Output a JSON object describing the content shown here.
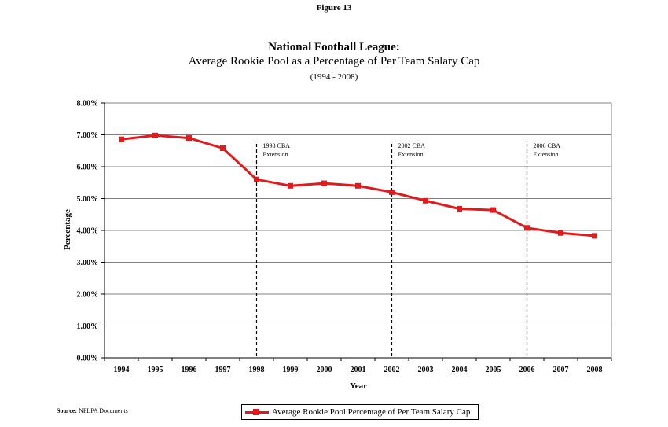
{
  "figure_label": "Figure 13",
  "source": {
    "label": "Source:",
    "text": "NFLPA Documents"
  },
  "colors": {
    "series": "#e31a1c",
    "grid": "#808080",
    "axis": "#000000"
  },
  "chart_data": {
    "type": "line",
    "title": "National Football League:",
    "subtitle": "Average Rookie Pool as a Percentage of Per Team Salary Cap",
    "date_range": "(1994 - 2008)",
    "xlabel": "Year",
    "ylabel": "Percentage",
    "ylim": [
      0,
      8
    ],
    "y_ticks": [
      "0.00%",
      "1.00%",
      "2.00%",
      "3.00%",
      "4.00%",
      "5.00%",
      "6.00%",
      "7.00%",
      "8.00%"
    ],
    "grid": true,
    "legend_position": "bottom",
    "categories": [
      "1994",
      "1995",
      "1996",
      "1997",
      "1998",
      "1999",
      "2000",
      "2001",
      "2002",
      "2003",
      "2004",
      "2005",
      "2006",
      "2007",
      "2008"
    ],
    "series": [
      {
        "name": "Average Rookie Pool Percentage of Per Team Salary Cap",
        "values": [
          6.86,
          6.98,
          6.9,
          6.58,
          5.6,
          5.4,
          5.48,
          5.4,
          5.2,
          4.93,
          4.68,
          4.64,
          4.08,
          3.92,
          3.83
        ]
      }
    ],
    "annotations": [
      {
        "year": "1998",
        "line1": "1998 CBA",
        "line2": "Extension"
      },
      {
        "year": "2002",
        "line1": "2002 CBA",
        "line2": "Extension"
      },
      {
        "year": "2006",
        "line1": "2006 CBA",
        "line2": "Extension"
      }
    ]
  }
}
